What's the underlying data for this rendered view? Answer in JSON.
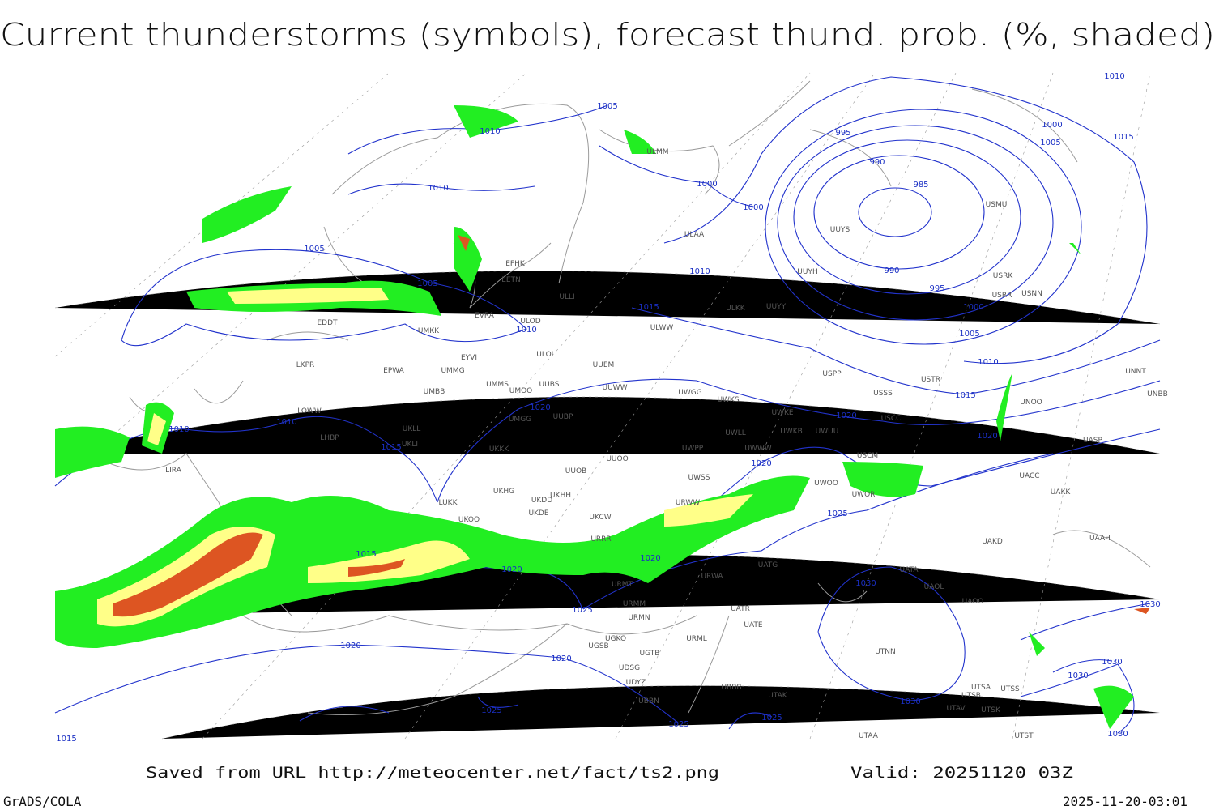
{
  "header": {
    "title": "Current thunderstorms (symbols), forecast thund. prob. (%, shaded)"
  },
  "footer": {
    "saved": "Saved from URL http://meteocenter.net/fact/ts2.png",
    "valid": "Valid: 20251120 03Z",
    "software": "GrADS/COLA",
    "timestamp": "2025-11-20-03:01"
  },
  "isobar_labels": [
    "1005",
    "1010",
    "1010",
    "1000",
    "1000",
    "995",
    "990",
    "985",
    "990",
    "995",
    "1000",
    "1005",
    "1010",
    "1015",
    "1020",
    "1010",
    "1015",
    "1005",
    "1000",
    "1005",
    "1005",
    "1010",
    "1010",
    "1015",
    "1010",
    "1010",
    "1015",
    "1020",
    "1020",
    "1020",
    "1025",
    "1015",
    "1020",
    "1020",
    "1025",
    "1020",
    "1020",
    "1025",
    "1025",
    "1025",
    "1030",
    "1030",
    "1030",
    "1030",
    "1030",
    "1030",
    "1015"
  ],
  "stations": [
    "ULMM",
    "ULAA",
    "EFHK",
    "EETN",
    "EVRA",
    "ULOD",
    "ULLI",
    "ULKK",
    "UUYY",
    "ULWW",
    "EDDT",
    "UMKK",
    "EYVI",
    "ULOL",
    "EPWA",
    "UMMG",
    "LKPR",
    "UUEM",
    "UMMS",
    "UMOO",
    "UUBS",
    "UUWW",
    "UMBB",
    "UWGG",
    "UWKS",
    "UWKE",
    "USPP",
    "USTR",
    "USSS",
    "USCC",
    "UNOO",
    "UNBB",
    "UNNT",
    "LOWW",
    "UMGG",
    "UUBP",
    "UWKB",
    "UWUU",
    "UWLL",
    "UKLL",
    "UKLI",
    "LHBP",
    "UACC",
    "UASP",
    "UKKK",
    "UWPP",
    "UWWW",
    "USCM",
    "UUOO",
    "UUOB",
    "UWSS",
    "UWOO",
    "UWOR",
    "LIRA",
    "LUKK",
    "UKHG",
    "UKDD",
    "UKHH",
    "UKDE",
    "UKOO",
    "UKCW",
    "URWW",
    "UAKK",
    "UAKD",
    "UAAH",
    "URRR",
    "UATG",
    "URWA",
    "URMT",
    "URMM",
    "URMN",
    "UATA",
    "UAOL",
    "UAOO",
    "UATR",
    "UATE",
    "UGSB",
    "UGKO",
    "URML",
    "UTNN",
    "UGTB",
    "UDSG",
    "UDYZ",
    "UBBB",
    "UBBN",
    "UTAK",
    "UTSA",
    "UTSS",
    "UTSB",
    "UTAV",
    "UTSK",
    "UTAA",
    "UTST",
    "UUYS",
    "UUYH",
    "USRK",
    "USRR",
    "USNN",
    "USMU"
  ]
}
